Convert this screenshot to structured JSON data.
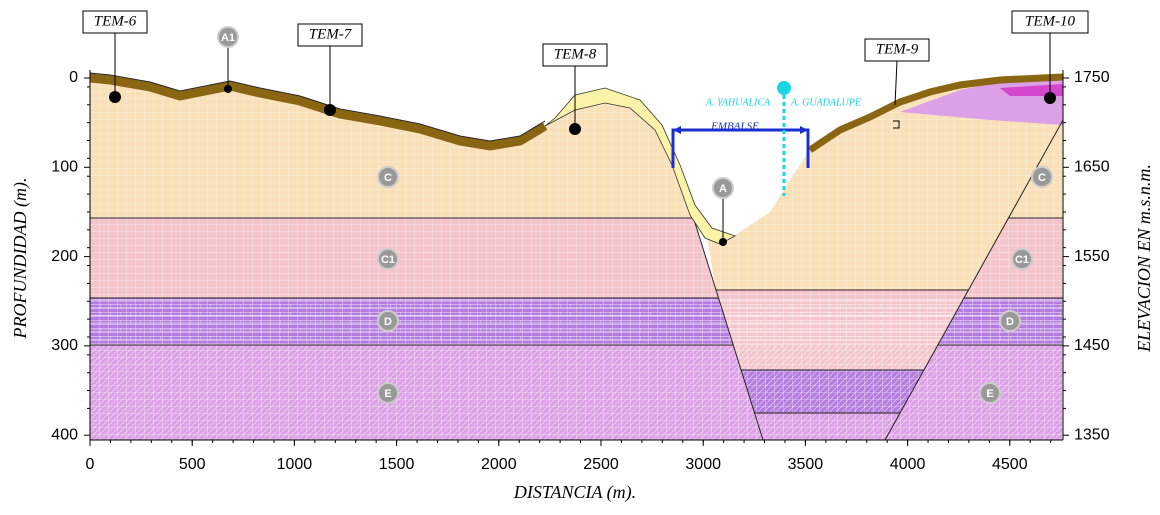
{
  "x_axis": {
    "label": "DISTANCIA (m).",
    "ticks": [
      0,
      500,
      1000,
      1500,
      2000,
      2500,
      3000,
      3500,
      4000,
      4500
    ]
  },
  "y_axis_left": {
    "label": "PROFUNDIDAD (m).",
    "ticks": [
      0,
      100,
      200,
      300,
      400
    ]
  },
  "y_axis_right": {
    "label": "ELEVACION EN m.s.n.m.",
    "ticks": [
      1750,
      1650,
      1550,
      1450,
      1350
    ]
  },
  "wells": [
    {
      "label": "TEM-6"
    },
    {
      "label": "TEM-7"
    },
    {
      "label": "TEM-8"
    },
    {
      "label": "TEM-9"
    },
    {
      "label": "TEM-10"
    }
  ],
  "units": [
    {
      "label": "A1"
    },
    {
      "label": "C"
    },
    {
      "label": "C1"
    },
    {
      "label": "D"
    },
    {
      "label": "E"
    },
    {
      "label": "A"
    },
    {
      "label": "C"
    },
    {
      "label": "C1"
    },
    {
      "label": "D"
    },
    {
      "label": "E"
    }
  ],
  "annotations": {
    "river_left": "A. YAHUALICA",
    "river_right": "A. GUADALUPE",
    "reservoir": "EMBALSE"
  }
}
